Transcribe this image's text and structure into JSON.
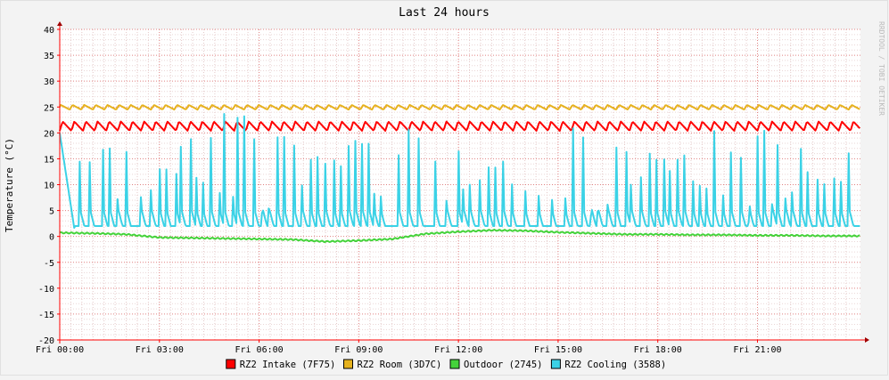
{
  "chart_data": {
    "type": "line",
    "title": "Last 24 hours",
    "ylabel": "Temperature (°C)",
    "watermark": "RRDTOOL / TOBI OETIKER",
    "ylim": [
      -20,
      40
    ],
    "yticks": [
      40,
      35,
      30,
      25,
      20,
      15,
      10,
      5,
      0,
      -5,
      -10,
      -15,
      -20
    ],
    "x_unit": "hours since Fri 00:00",
    "xlim": [
      0,
      24.1
    ],
    "xticks": [
      {
        "label": "Fri 00:00",
        "hour": 0
      },
      {
        "label": "Fri 03:00",
        "hour": 3
      },
      {
        "label": "Fri 06:00",
        "hour": 6
      },
      {
        "label": "Fri 09:00",
        "hour": 9
      },
      {
        "label": "Fri 12:00",
        "hour": 12
      },
      {
        "label": "Fri 15:00",
        "hour": 15
      },
      {
        "label": "Fri 18:00",
        "hour": 18
      },
      {
        "label": "Fri 21:00",
        "hour": 21
      }
    ],
    "grid": true,
    "legend_position": "bottom",
    "series": [
      {
        "name": "RZ2 Intake (7F75)",
        "color": "#ff0000",
        "kind": "intake",
        "base": 21.0,
        "amplitude": 1.2,
        "period_h": 0.35
      },
      {
        "name": "RZ2 Room (3D7C)",
        "color": "#e6b21e",
        "kind": "room",
        "base": 24.8,
        "amplitude": 0.6,
        "period_h": 0.35
      },
      {
        "name": "Outdoor (2745)",
        "color": "#44d33a",
        "kind": "outdoor",
        "x": [
          0,
          1,
          2,
          3,
          4,
          5,
          6,
          7,
          8,
          9,
          10,
          11,
          12,
          13,
          14,
          15,
          16,
          17,
          18,
          19,
          20,
          21,
          22,
          23,
          24
        ],
        "values": [
          0.7,
          0.6,
          0.4,
          -0.2,
          -0.3,
          -0.4,
          -0.5,
          -0.6,
          -1.0,
          -0.8,
          -0.5,
          0.5,
          0.9,
          1.2,
          1.1,
          0.8,
          0.6,
          0.4,
          0.4,
          0.3,
          0.3,
          0.2,
          0.2,
          0.1,
          0.1
        ]
      },
      {
        "name": "RZ2 Cooling (3588)",
        "color": "#3bd2e6",
        "kind": "cooling",
        "base": 2.0,
        "spike_hours": [
          0.6,
          0.9,
          1.3,
          1.5,
          1.75,
          2.0,
          2.45,
          2.75,
          3.0,
          3.2,
          3.5,
          3.65,
          3.95,
          4.1,
          4.3,
          4.55,
          4.8,
          4.95,
          5.2,
          5.35,
          5.55,
          5.85,
          6.1,
          6.3,
          6.55,
          6.75,
          7.05,
          7.3,
          7.55,
          7.75,
          8.0,
          8.25,
          8.45,
          8.7,
          8.9,
          9.1,
          9.3,
          9.45,
          9.65,
          10.2,
          10.5,
          10.8,
          11.3,
          11.65,
          12.0,
          12.15,
          12.35,
          12.65,
          12.9,
          13.1,
          13.35,
          13.6,
          14.0,
          14.4,
          14.8,
          15.2,
          15.45,
          15.75,
          16.0,
          16.2,
          16.5,
          16.75,
          17.05,
          17.2,
          17.5,
          17.75,
          17.95,
          18.2,
          18.35,
          18.6,
          18.8,
          19.05,
          19.25,
          19.45,
          19.7,
          19.95,
          20.2,
          20.5,
          20.75,
          21.0,
          21.2,
          21.45,
          21.6,
          21.85,
          22.05,
          22.3,
          22.5,
          22.8,
          23.0,
          23.3,
          23.5,
          23.75
        ],
        "spike_peaks": [
          15.5,
          16,
          20,
          21,
          21,
          22,
          15,
          16,
          21,
          22,
          22,
          24,
          24,
          25,
          24,
          21,
          22,
          24,
          25,
          24,
          25,
          21,
          22,
          22,
          24,
          25,
          24,
          22,
          22,
          24,
          24,
          26,
          25,
          24,
          24,
          22,
          21,
          17.5,
          17,
          16,
          22,
          21,
          17,
          22,
          22,
          22,
          22,
          21,
          21,
          22,
          22,
          17.5,
          16,
          15.5,
          15,
          22,
          22,
          21,
          22,
          22,
          22,
          22,
          22,
          24,
          24,
          25,
          24,
          24,
          22,
          21,
          21,
          22,
          21,
          21,
          22,
          21,
          16.5,
          16,
          21,
          22,
          24,
          24,
          22,
          21,
          22,
          24,
          17.5,
          16,
          15,
          18.5,
          18,
          22
        ]
      }
    ]
  }
}
